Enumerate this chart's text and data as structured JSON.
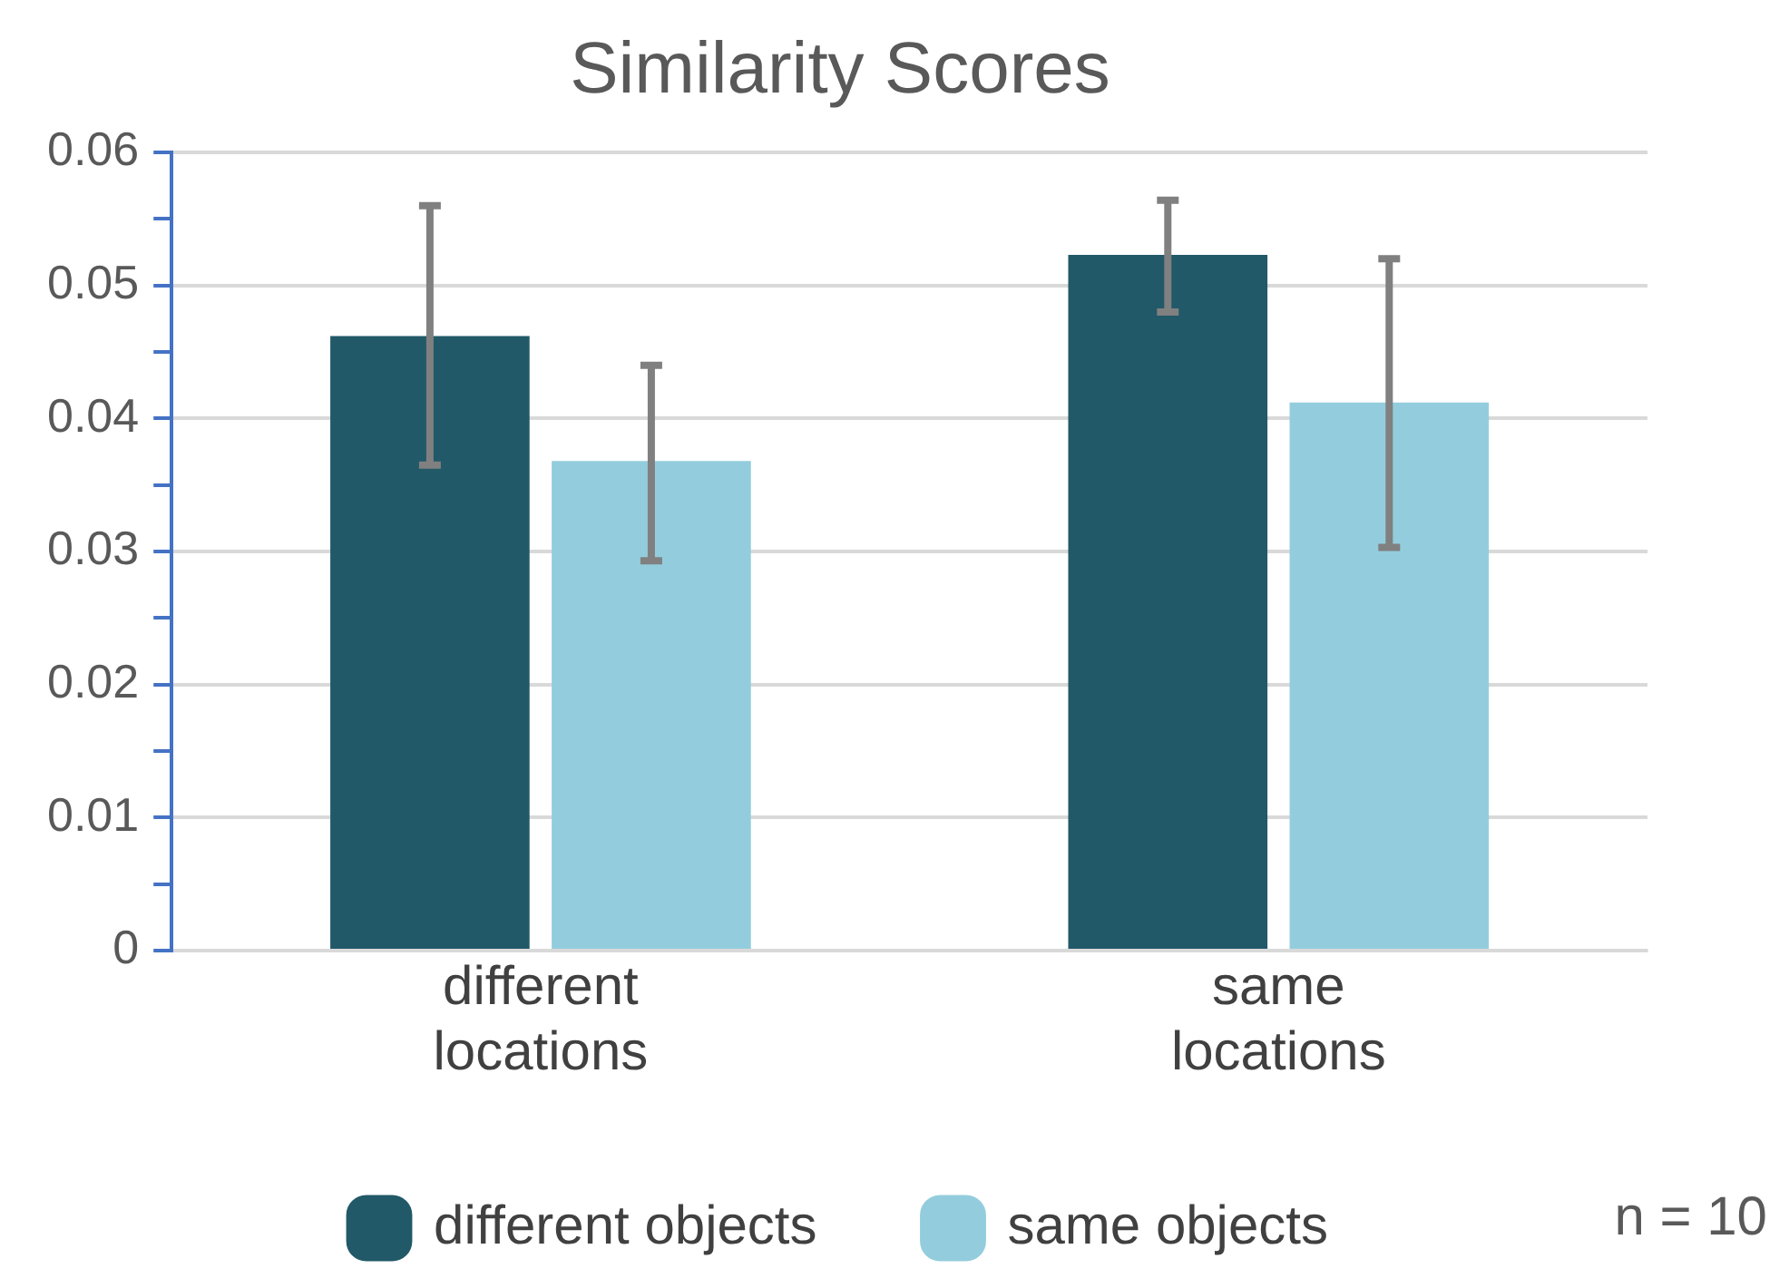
{
  "chart_data": {
    "type": "bar",
    "title": "Similarity Scores",
    "categories": [
      "different locations",
      "same locations"
    ],
    "series": [
      {
        "name": "different objects",
        "color": "#215968",
        "values": [
          0.0462,
          0.0523
        ],
        "errors": [
          [
            0.0365,
            0.056
          ],
          [
            0.048,
            0.0564
          ]
        ]
      },
      {
        "name": "same objects",
        "color": "#93cddd",
        "values": [
          0.0368,
          0.0412
        ],
        "errors": [
          [
            0.0293,
            0.044
          ],
          [
            0.0303,
            0.052
          ]
        ]
      }
    ],
    "ylim": [
      0,
      0.06
    ],
    "yticks": [
      0,
      {
        "value": 0.005,
        "label": null
      },
      0.01,
      {
        "value": 0.015,
        "label": null
      },
      0.02,
      {
        "value": 0.025,
        "label": null
      },
      0.03,
      {
        "value": 0.035,
        "label": null
      },
      0.04,
      {
        "value": 0.045,
        "label": null
      },
      0.05,
      {
        "value": 0.055,
        "label": null
      },
      0.06
    ],
    "grid": "y",
    "legend": "bottom",
    "annotations": [
      "n = 10"
    ]
  }
}
